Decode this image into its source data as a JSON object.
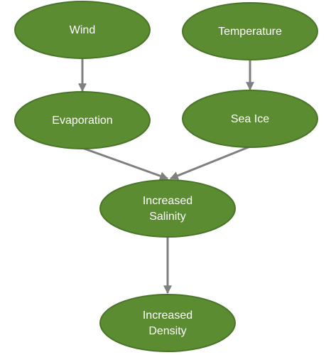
{
  "nodes": {
    "wind": {
      "lines": [
        "Wind"
      ]
    },
    "temperature": {
      "lines": [
        "Temperature"
      ]
    },
    "evaporation": {
      "lines": [
        "Evaporation"
      ]
    },
    "sea_ice": {
      "lines": [
        "Sea Ice"
      ]
    },
    "increased_salinity": {
      "lines": [
        "Increased",
        "Salinity"
      ]
    },
    "increased_density": {
      "lines": [
        "Increased",
        "Density"
      ]
    }
  },
  "edges": [
    {
      "from": "Wind",
      "to": "Evaporation"
    },
    {
      "from": "Temperature",
      "to": "Sea Ice"
    },
    {
      "from": "Evaporation",
      "to": "Increased Salinity"
    },
    {
      "from": "Sea Ice",
      "to": "Increased Salinity"
    },
    {
      "from": "Increased Salinity",
      "to": "Increased Density"
    }
  ],
  "colors": {
    "node_fill": "#5b8c32",
    "node_border": "#4a7528",
    "node_text": "#ffffff",
    "arrow": "#7f7f7f"
  }
}
